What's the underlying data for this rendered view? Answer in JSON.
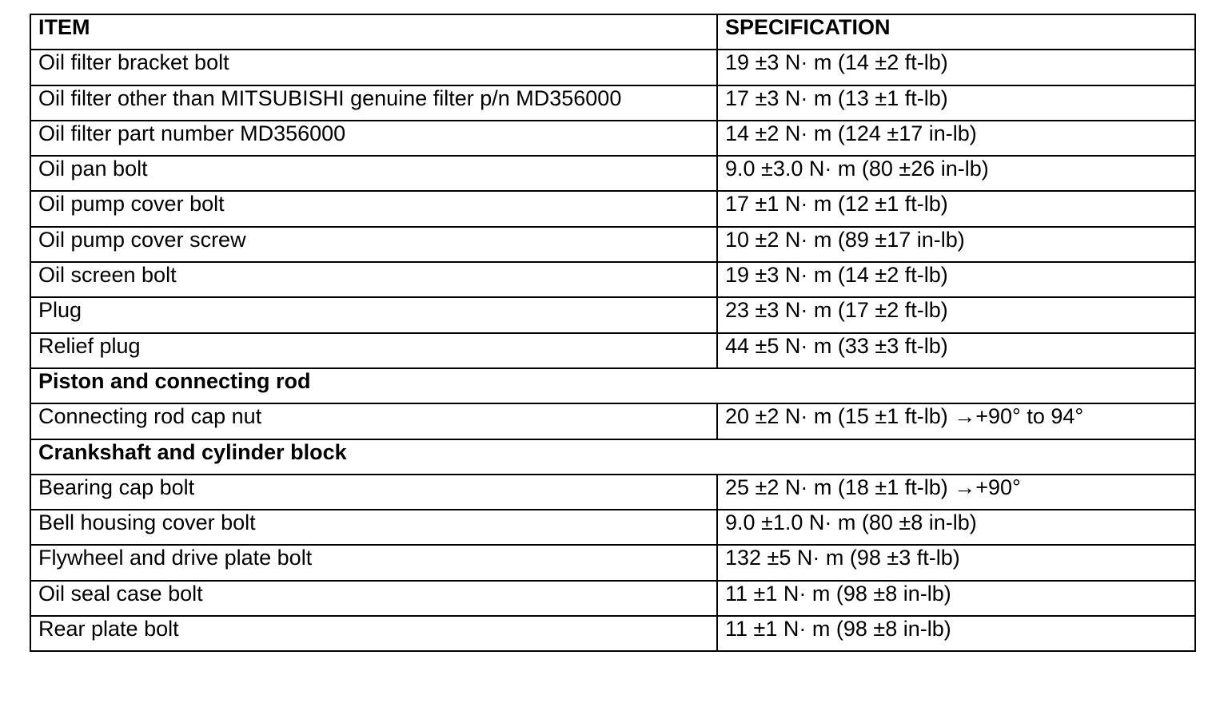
{
  "header": {
    "item": "ITEM",
    "specification": "SPECIFICATION"
  },
  "rows": [
    {
      "type": "row",
      "item": "Oil filter bracket bolt",
      "spec": "19 ±3 N· m (14 ±2 ft-lb)"
    },
    {
      "type": "row",
      "item": "Oil filter other than MITSUBISHI genuine filter p/n MD356000",
      "spec": "17 ±3 N· m (13 ±1 ft-lb)"
    },
    {
      "type": "row",
      "item": "Oil filter part number MD356000",
      "spec": "14 ±2 N· m (124 ±17 in-lb)"
    },
    {
      "type": "row",
      "item": "Oil pan bolt",
      "spec": "9.0 ±3.0 N· m (80 ±26 in-lb)"
    },
    {
      "type": "row",
      "item": "Oil pump cover bolt",
      "spec": "17 ±1 N· m (12 ±1 ft-lb)"
    },
    {
      "type": "row",
      "item": "Oil pump cover screw",
      "spec": "10 ±2 N· m (89 ±17 in-lb)"
    },
    {
      "type": "row",
      "item": "Oil screen bolt",
      "spec": "19 ±3 N· m (14 ±2 ft-lb)"
    },
    {
      "type": "row",
      "item": "Plug",
      "spec": "23 ±3 N· m (17 ±2 ft-lb)"
    },
    {
      "type": "row",
      "item": "Relief plug",
      "spec": "44 ±5 N· m (33 ±3 ft-lb)"
    },
    {
      "type": "section",
      "item": "Piston and connecting rod"
    },
    {
      "type": "row",
      "item": "Connecting rod cap nut",
      "spec": "20 ±2 N· m (15 ±1 ft-lb) →+90°  to 94°"
    },
    {
      "type": "section",
      "item": "Crankshaft and cylinder block"
    },
    {
      "type": "row",
      "item": "Bearing cap bolt",
      "spec": "25 ±2 N· m (18 ±1 ft-lb) →+90°"
    },
    {
      "type": "row",
      "item": "Bell housing cover bolt",
      "spec": "9.0 ±1.0 N· m (80 ±8 in-lb)"
    },
    {
      "type": "row",
      "item": "Flywheel and drive plate bolt",
      "spec": "132 ±5 N· m (98 ±3 ft-lb)"
    },
    {
      "type": "row",
      "item": "Oil seal case bolt",
      "spec": "11 ±1 N· m (98 ±8 in-lb)"
    },
    {
      "type": "row",
      "item": "Rear plate bolt",
      "spec": "11 ±1 N· m (98 ±8 in-lb)"
    }
  ]
}
